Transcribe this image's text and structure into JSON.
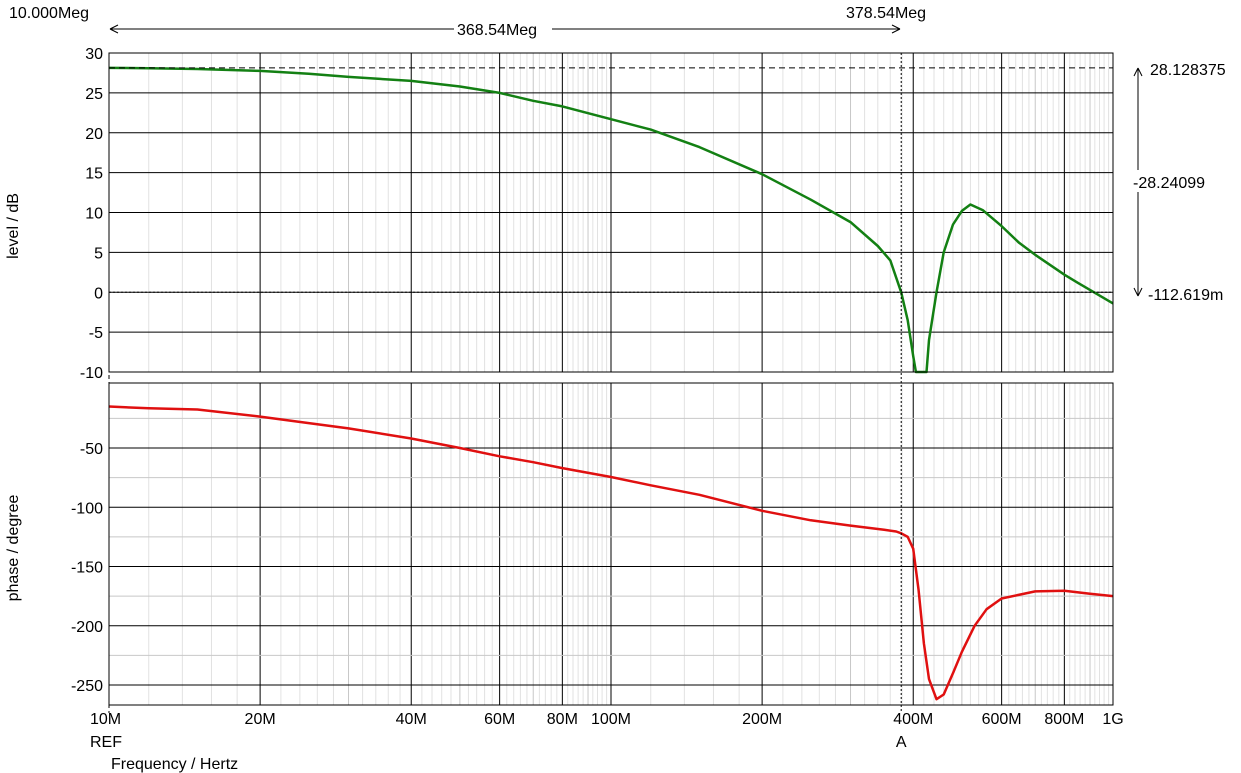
{
  "chart_data": [
    {
      "type": "line",
      "panel": "magnitude",
      "ylabel": "level / dB",
      "xscale": "log",
      "xlim": [
        10000000,
        1000000000
      ],
      "ylim": [
        -10,
        30
      ],
      "yticks": [
        30,
        25,
        20,
        15,
        10,
        5,
        0,
        -5,
        -10
      ],
      "grid": true,
      "series": [
        {
          "color": "#138013",
          "points": [
            [
              10000000,
              28.13
            ],
            [
              12000000,
              28.1
            ],
            [
              15000000,
              28.0
            ],
            [
              20000000,
              27.75
            ],
            [
              25000000,
              27.4
            ],
            [
              30000000,
              27.0
            ],
            [
              40000000,
              26.5
            ],
            [
              50000000,
              25.8
            ],
            [
              60000000,
              25.0
            ],
            [
              70000000,
              24.0
            ],
            [
              80000000,
              23.3
            ],
            [
              100000000,
              21.7
            ],
            [
              120000000,
              20.4
            ],
            [
              150000000,
              18.2
            ],
            [
              200000000,
              14.8
            ],
            [
              250000000,
              11.6
            ],
            [
              300000000,
              8.8
            ],
            [
              340000000,
              5.8
            ],
            [
              360000000,
              4.0
            ],
            [
              378540000,
              0.0
            ],
            [
              390000000,
              -3.5
            ],
            [
              400000000,
              -8.0
            ],
            [
              405000000,
              -10.0
            ],
            [
              425000000,
              -10.0
            ],
            [
              430000000,
              -6.0
            ],
            [
              445000000,
              0.0
            ],
            [
              460000000,
              5.0
            ],
            [
              480000000,
              8.5
            ],
            [
              500000000,
              10.2
            ],
            [
              520000000,
              11.0
            ],
            [
              550000000,
              10.3
            ],
            [
              600000000,
              8.3
            ],
            [
              650000000,
              6.2
            ],
            [
              700000000,
              4.7
            ],
            [
              800000000,
              2.2
            ],
            [
              850000000,
              1.2
            ],
            [
              900000000,
              0.3
            ],
            [
              1000000000,
              -1.4
            ]
          ]
        }
      ],
      "reference_line_y": 28.128375
    },
    {
      "type": "line",
      "panel": "phase",
      "ylabel": "phase / degree",
      "xlabel": "Frequency / Hertz",
      "xscale": "log",
      "xlim": [
        10000000,
        1000000000
      ],
      "ylim": [
        -270,
        -15
      ],
      "yticks": [
        -50,
        -100,
        -150,
        -200,
        -250
      ],
      "grid": true,
      "series": [
        {
          "color": "#e01010",
          "points": [
            [
              10000000,
              -15
            ],
            [
              12000000,
              -16.5
            ],
            [
              15000000,
              -17.5
            ],
            [
              20000000,
              -23.5
            ],
            [
              25000000,
              -29
            ],
            [
              30000000,
              -33.5
            ],
            [
              40000000,
              -42
            ],
            [
              50000000,
              -50
            ],
            [
              60000000,
              -57
            ],
            [
              70000000,
              -62
            ],
            [
              80000000,
              -67
            ],
            [
              100000000,
              -74.5
            ],
            [
              120000000,
              -81.5
            ],
            [
              150000000,
              -89.5
            ],
            [
              200000000,
              -103
            ],
            [
              250000000,
              -111
            ],
            [
              300000000,
              -115.5
            ],
            [
              350000000,
              -119
            ],
            [
              370000000,
              -120.5
            ],
            [
              378540000,
              -122
            ],
            [
              390000000,
              -125
            ],
            [
              400000000,
              -135
            ],
            [
              410000000,
              -170
            ],
            [
              420000000,
              -215
            ],
            [
              430000000,
              -245
            ],
            [
              445000000,
              -262
            ],
            [
              460000000,
              -258
            ],
            [
              480000000,
              -240
            ],
            [
              500000000,
              -222
            ],
            [
              530000000,
              -200
            ],
            [
              560000000,
              -186
            ],
            [
              600000000,
              -177
            ],
            [
              700000000,
              -171
            ],
            [
              800000000,
              -170.5
            ],
            [
              900000000,
              -173
            ],
            [
              1000000000,
              -175
            ]
          ]
        }
      ]
    }
  ],
  "x_ticks": [
    {
      "label": "10M",
      "value": 10000000
    },
    {
      "label": "20M",
      "value": 20000000
    },
    {
      "label": "40M",
      "value": 40000000
    },
    {
      "label": "60M",
      "value": 60000000
    },
    {
      "label": "80M",
      "value": 80000000
    },
    {
      "label": "100M",
      "value": 100000000
    },
    {
      "label": "200M",
      "value": 200000000
    },
    {
      "label": "400M",
      "value": 400000000
    },
    {
      "label": "600M",
      "value": 600000000
    },
    {
      "label": "800M",
      "value": 800000000
    },
    {
      "label": "1G",
      "value": 1000000000
    }
  ],
  "markers": {
    "ref": {
      "label": "REF",
      "value": 10000000
    },
    "a": {
      "label": "A",
      "value": 378540000
    }
  },
  "cursor_readouts": {
    "ref_freq": "10.000Meg",
    "a_freq": "378.54Meg",
    "delta_freq": "368.54Meg",
    "top_value": "28.128375",
    "delta_value": "-28.24099",
    "bottom_value": "-112.619m"
  }
}
